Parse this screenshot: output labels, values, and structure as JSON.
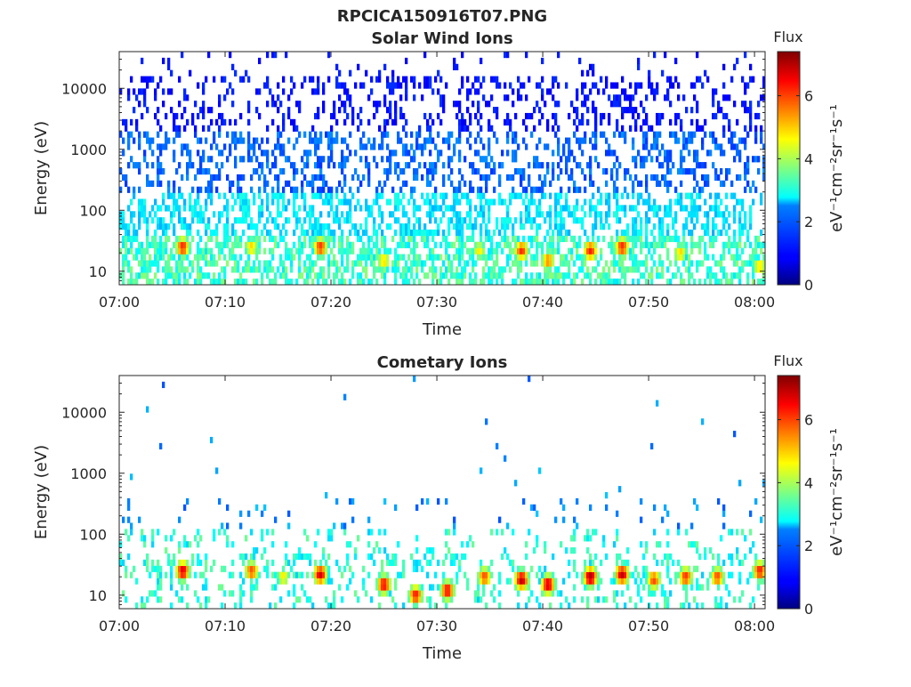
{
  "figure": {
    "title": "RPCICA150916T07.PNG"
  },
  "chart_data": [
    {
      "type": "heatmap",
      "title": "Solar Wind Ions",
      "xlabel": "Time",
      "ylabel": "Energy (eV)",
      "x_ticks": [
        "07:00",
        "07:10",
        "07:20",
        "07:30",
        "07:40",
        "07:50",
        "08:00"
      ],
      "x_range": [
        "07:00",
        "08:01"
      ],
      "y_scale": "log",
      "y_ticks": [
        "10",
        "100",
        "1000",
        "10000"
      ],
      "y_range": [
        6,
        40000
      ],
      "colorbar": {
        "label": "Flux",
        "unit_label": "eV⁻¹cm⁻²sr⁻¹s⁻¹",
        "ticks": [
          "0",
          "2",
          "4",
          "6"
        ],
        "range": [
          0,
          7.4
        ],
        "colormap": "jet"
      },
      "hotspots": [
        {
          "time_min": 6.0,
          "energy_ev": 25,
          "flux": 6.3
        },
        {
          "time_min": 12.5,
          "energy_ev": 25,
          "flux": 5.0
        },
        {
          "time_min": 19.0,
          "energy_ev": 25,
          "flux": 6.2
        },
        {
          "time_min": 25.0,
          "energy_ev": 15,
          "flux": 5.0
        },
        {
          "time_min": 34.0,
          "energy_ev": 22,
          "flux": 4.8
        },
        {
          "time_min": 38.0,
          "energy_ev": 22,
          "flux": 6.2
        },
        {
          "time_min": 40.5,
          "energy_ev": 15,
          "flux": 5.6
        },
        {
          "time_min": 44.5,
          "energy_ev": 22,
          "flux": 6.3
        },
        {
          "time_min": 47.5,
          "energy_ev": 25,
          "flux": 6.3
        },
        {
          "time_min": 53.0,
          "energy_ev": 20,
          "flux": 5.0
        },
        {
          "time_min": 60.5,
          "energy_ev": 12,
          "flux": 5.0
        }
      ]
    },
    {
      "type": "heatmap",
      "title": "Cometary Ions",
      "xlabel": "Time",
      "ylabel": "Energy (eV)",
      "x_ticks": [
        "07:00",
        "07:10",
        "07:20",
        "07:30",
        "07:40",
        "07:50",
        "08:00"
      ],
      "x_range": [
        "07:00",
        "08:01"
      ],
      "y_scale": "log",
      "y_ticks": [
        "10",
        "100",
        "1000",
        "10000"
      ],
      "y_range": [
        6,
        40000
      ],
      "colorbar": {
        "label": "Flux",
        "unit_label": "eV⁻¹cm⁻²sr⁻¹s⁻¹",
        "ticks": [
          "0",
          "2",
          "4",
          "6"
        ],
        "range": [
          0,
          7.4
        ],
        "colormap": "jet"
      },
      "hotspots": [
        {
          "time_min": 6.0,
          "energy_ev": 25,
          "flux": 6.8
        },
        {
          "time_min": 12.5,
          "energy_ev": 25,
          "flux": 6.0
        },
        {
          "time_min": 15.5,
          "energy_ev": 20,
          "flux": 4.8
        },
        {
          "time_min": 19.0,
          "energy_ev": 22,
          "flux": 6.8
        },
        {
          "time_min": 25.0,
          "energy_ev": 15,
          "flux": 6.6
        },
        {
          "time_min": 28.0,
          "energy_ev": 10,
          "flux": 6.4
        },
        {
          "time_min": 31.0,
          "energy_ev": 12,
          "flux": 6.6
        },
        {
          "time_min": 34.5,
          "energy_ev": 20,
          "flux": 6.0
        },
        {
          "time_min": 38.0,
          "energy_ev": 18,
          "flux": 7.0
        },
        {
          "time_min": 40.5,
          "energy_ev": 15,
          "flux": 6.9
        },
        {
          "time_min": 44.5,
          "energy_ev": 20,
          "flux": 7.2
        },
        {
          "time_min": 47.5,
          "energy_ev": 22,
          "flux": 7.0
        },
        {
          "time_min": 50.5,
          "energy_ev": 18,
          "flux": 6.0
        },
        {
          "time_min": 53.5,
          "energy_ev": 20,
          "flux": 6.2
        },
        {
          "time_min": 56.5,
          "energy_ev": 20,
          "flux": 6.0
        },
        {
          "time_min": 60.5,
          "energy_ev": 25,
          "flux": 6.4
        }
      ]
    }
  ]
}
